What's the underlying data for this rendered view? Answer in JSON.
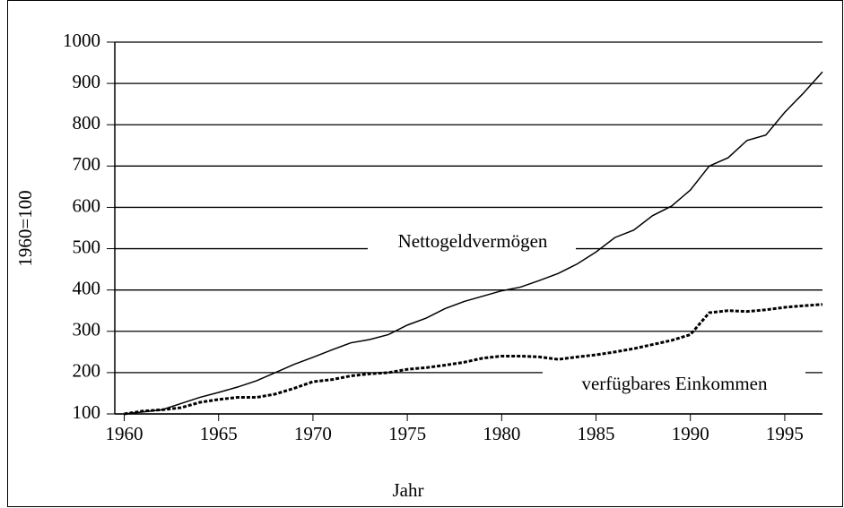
{
  "chart_data": {
    "type": "line",
    "x_label": "Jahr",
    "y_label": "1960=100",
    "x": [
      1960,
      1961,
      1962,
      1963,
      1964,
      1965,
      1966,
      1967,
      1968,
      1969,
      1970,
      1971,
      1972,
      1973,
      1974,
      1975,
      1976,
      1977,
      1978,
      1979,
      1980,
      1981,
      1982,
      1983,
      1984,
      1985,
      1986,
      1987,
      1988,
      1989,
      1990,
      1991,
      1992,
      1993,
      1994,
      1995,
      1996,
      1997
    ],
    "series": [
      {
        "name": "Nettogeldvermögen",
        "color": "#000000",
        "line_style": "solid",
        "values": [
          100,
          105,
          110,
          125,
          140,
          152,
          165,
          180,
          200,
          220,
          237,
          255,
          272,
          280,
          292,
          315,
          332,
          355,
          372,
          385,
          398,
          407,
          423,
          440,
          463,
          492,
          527,
          545,
          580,
          603,
          642,
          700,
          720,
          762,
          775,
          830,
          877,
          928
        ]
      },
      {
        "name": "verfügbares Einkommen",
        "color": "#000000",
        "line_style": "dashed",
        "values": [
          100,
          107,
          110,
          115,
          128,
          135,
          140,
          140,
          148,
          162,
          178,
          183,
          192,
          197,
          200,
          208,
          212,
          218,
          225,
          235,
          240,
          240,
          238,
          232,
          238,
          243,
          250,
          258,
          268,
          278,
          292,
          345,
          350,
          348,
          352,
          358,
          362,
          365
        ]
      }
    ],
    "xlim": [
      1959.5,
      1997
    ],
    "xticks": [
      1960,
      1965,
      1970,
      1975,
      1980,
      1985,
      1990,
      1995
    ],
    "ylim": [
      100,
      1000
    ],
    "yticks": [
      100,
      200,
      300,
      400,
      500,
      600,
      700,
      800,
      900,
      1000
    ],
    "grid": true
  }
}
